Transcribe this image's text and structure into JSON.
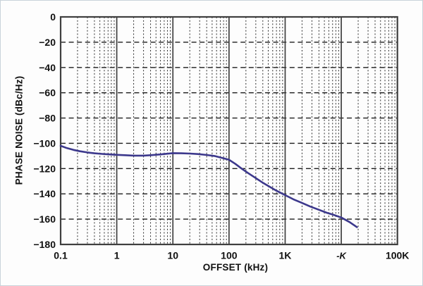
{
  "figure": {
    "background": "#fdfdfd",
    "border_color": "#c9d3da"
  },
  "chart_data": {
    "type": "line",
    "title": "",
    "xlabel": "OFFSET (kHz)",
    "ylabel": "PHASE NOISE (dBc/Hz)",
    "x_scale": "log",
    "xlim": [
      0.1,
      100000
    ],
    "ylim": [
      -180,
      0
    ],
    "grid": {
      "major_horizontal": "dashed",
      "decade_vertical": "solid",
      "minor_vertical": "dotted",
      "legend": "none"
    },
    "colors": {
      "grid": "#2e2e2e",
      "frame": "#3f3f3f",
      "text": "#111111"
    },
    "y_ticks": [
      {
        "value": 0,
        "label": "0"
      },
      {
        "value": -20,
        "label": "−20"
      },
      {
        "value": -40,
        "label": "−40"
      },
      {
        "value": -60,
        "label": "−60"
      },
      {
        "value": -80,
        "label": "−80"
      },
      {
        "value": -100,
        "label": "−100"
      },
      {
        "value": -120,
        "label": "−120"
      },
      {
        "value": -140,
        "label": "−140"
      },
      {
        "value": -160,
        "label": "−160"
      },
      {
        "value": -180,
        "label": "−180"
      }
    ],
    "x_ticks": [
      {
        "value": 0.1,
        "label": "0.1"
      },
      {
        "value": 1,
        "label": "1"
      },
      {
        "value": 10,
        "label": "10"
      },
      {
        "value": 100,
        "label": "100"
      },
      {
        "value": 1000,
        "label": "1K"
      },
      {
        "value": 10000,
        "label": "-K",
        "garbled": true
      },
      {
        "value": 100000,
        "label": "100K"
      }
    ],
    "series": [
      {
        "name": "phase noise",
        "color": "#3c388c",
        "points": [
          [
            0.1,
            -102
          ],
          [
            0.13,
            -103.8
          ],
          [
            0.17,
            -105.2
          ],
          [
            0.22,
            -106.3
          ],
          [
            0.3,
            -107.2
          ],
          [
            0.4,
            -107.9
          ],
          [
            0.55,
            -108.4
          ],
          [
            0.75,
            -108.8
          ],
          [
            1,
            -109.1
          ],
          [
            1.4,
            -109.4
          ],
          [
            2,
            -109.7
          ],
          [
            3,
            -109.7
          ],
          [
            4,
            -109.4
          ],
          [
            6,
            -108.8
          ],
          [
            8,
            -108.2
          ],
          [
            10,
            -107.8
          ],
          [
            14,
            -107.9
          ],
          [
            20,
            -108.1
          ],
          [
            28,
            -108.5
          ],
          [
            40,
            -109.2
          ],
          [
            55,
            -110
          ],
          [
            70,
            -111.2
          ],
          [
            100,
            -113
          ],
          [
            130,
            -116.3
          ],
          [
            170,
            -120.2
          ],
          [
            220,
            -123.6
          ],
          [
            300,
            -127.5
          ],
          [
            400,
            -131.2
          ],
          [
            550,
            -134.8
          ],
          [
            700,
            -137.5
          ],
          [
            1000,
            -141
          ],
          [
            1400,
            -144.3
          ],
          [
            2000,
            -147.2
          ],
          [
            2800,
            -150
          ],
          [
            4000,
            -152.6
          ],
          [
            5500,
            -154.9
          ],
          [
            7000,
            -156.3
          ],
          [
            10000,
            -158.7
          ],
          [
            14000,
            -162.3
          ],
          [
            19000,
            -166.3
          ]
        ]
      }
    ]
  }
}
